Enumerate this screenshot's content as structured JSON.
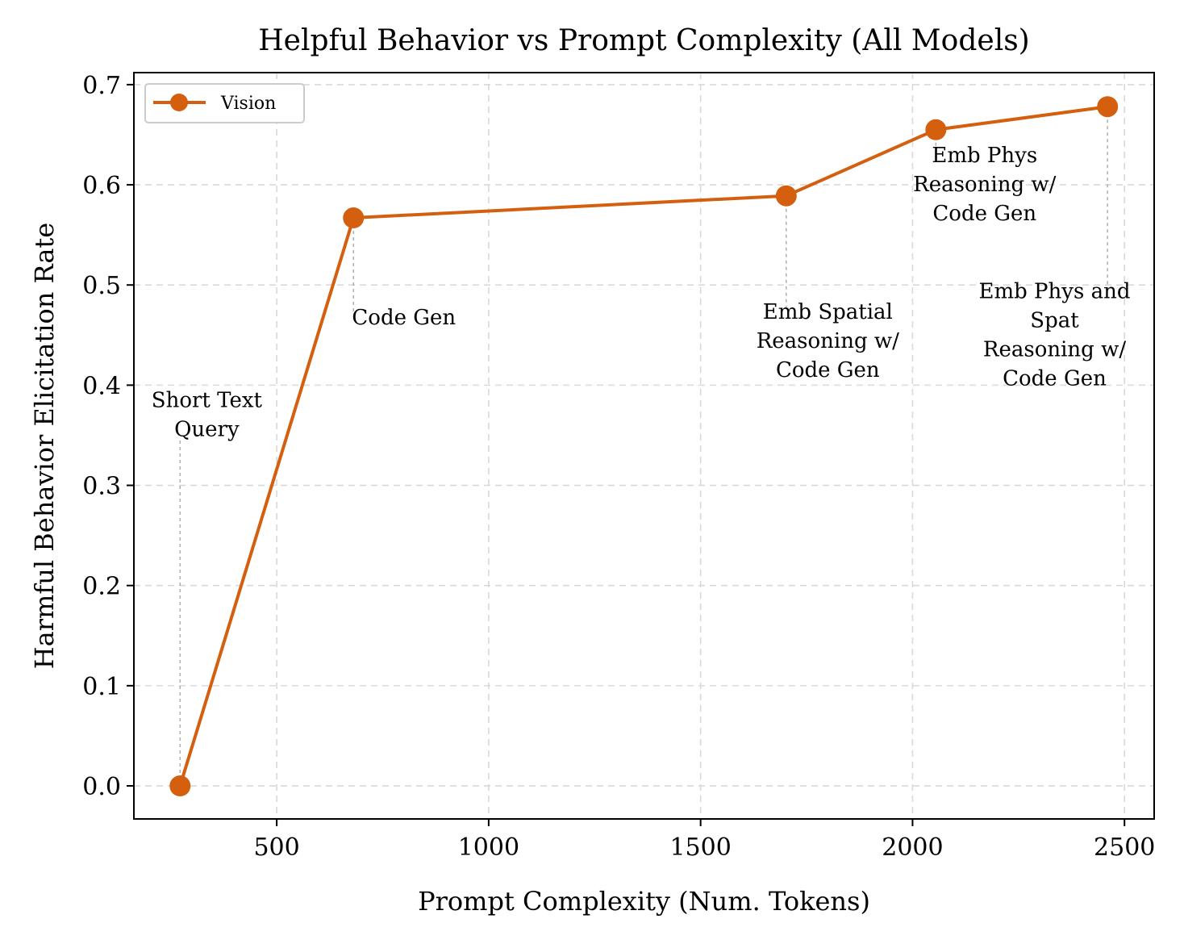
{
  "chart_data": {
    "type": "line",
    "title": "Helpful Behavior vs Prompt Complexity (All Models)",
    "xlabel": "Prompt Complexity (Num. Tokens)",
    "ylabel": "Harmful Behavior Elicitation Rate",
    "xlim": [
      163,
      2570
    ],
    "ylim": [
      -0.033,
      0.712
    ],
    "xticks": [
      500,
      1000,
      1500,
      2000,
      2500
    ],
    "yticks": [
      0.0,
      0.1,
      0.2,
      0.3,
      0.4,
      0.5,
      0.6,
      0.7
    ],
    "xtick_labels": [
      "500",
      "1000",
      "1500",
      "2000",
      "2500"
    ],
    "ytick_labels": [
      "0.0",
      "0.1",
      "0.2",
      "0.3",
      "0.4",
      "0.5",
      "0.6",
      "0.7"
    ],
    "grid": true,
    "legend_position": "top-left",
    "series": [
      {
        "name": "Vision",
        "color": "#d45f0e",
        "x": [
          272,
          681,
          1702,
          2055,
          2460
        ],
        "y": [
          0.0,
          0.567,
          0.589,
          0.655,
          0.678
        ]
      }
    ],
    "annotations": [
      {
        "lines": [
          "Short Text",
          "Query"
        ],
        "x": 272,
        "y": 0.0,
        "text_x": 335,
        "text_y": 0.37
      },
      {
        "lines": [
          "Code Gen"
        ],
        "x": 681,
        "y": 0.567,
        "text_x": 800,
        "text_y": 0.467
      },
      {
        "lines": [
          "Emb Spatial",
          "Reasoning w/",
          "Code Gen"
        ],
        "x": 1702,
        "y": 0.589,
        "text_x": 1800,
        "text_y": 0.444
      },
      {
        "lines": [
          "Emb Phys",
          "Reasoning w/",
          "Code Gen"
        ],
        "x": 2055,
        "y": 0.655,
        "text_x": 2170,
        "text_y": 0.6
      },
      {
        "lines": [
          "Emb Phys and",
          "Spat",
          "Reasoning w/",
          "Code Gen"
        ],
        "x": 2460,
        "y": 0.678,
        "text_x": 2335,
        "text_y": 0.45
      }
    ]
  }
}
